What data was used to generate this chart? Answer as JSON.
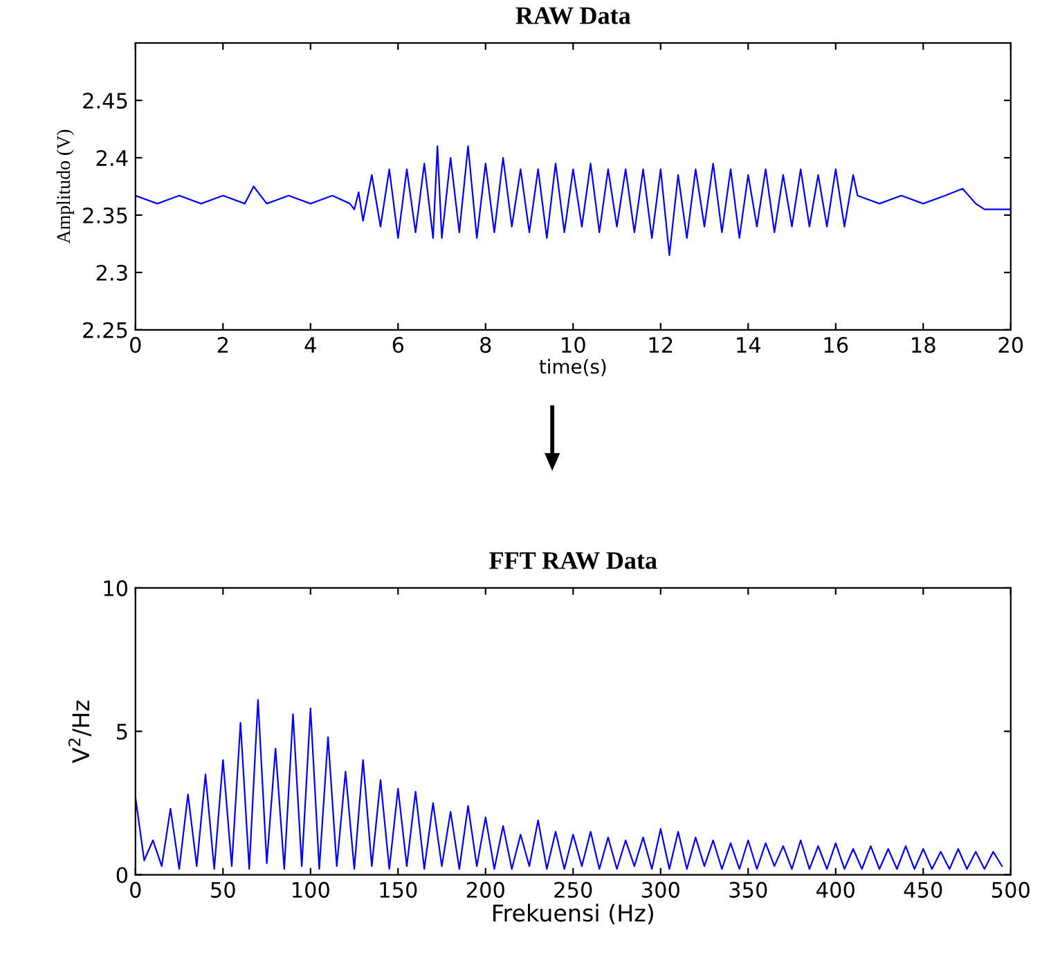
{
  "chart_data": [
    {
      "type": "line",
      "title": "RAW Data",
      "xlabel": "time(s)",
      "ylabel": "Amplitudo (V)",
      "xlim": [
        0,
        20
      ],
      "xticks": [
        0,
        2,
        4,
        6,
        8,
        10,
        12,
        14,
        16,
        18,
        20
      ],
      "ylim": [
        2.25,
        2.5
      ],
      "yticks": [
        2.25,
        2.3,
        2.35,
        2.4,
        2.45
      ],
      "grid": false,
      "legend": false,
      "marker": "none",
      "line_style": "solid",
      "series": [
        {
          "color": "#0000ff",
          "x": [
            0,
            0.5,
            1.0,
            1.5,
            2.0,
            2.5,
            2.7,
            3.0,
            3.5,
            4.0,
            4.5,
            4.9,
            5.0,
            5.1,
            5.2,
            5.4,
            5.6,
            5.8,
            6.0,
            6.2,
            6.4,
            6.6,
            6.8,
            6.9,
            7.0,
            7.2,
            7.4,
            7.6,
            7.8,
            8.0,
            8.2,
            8.4,
            8.6,
            8.8,
            9.0,
            9.2,
            9.4,
            9.6,
            9.8,
            10.0,
            10.2,
            10.4,
            10.6,
            10.8,
            11.0,
            11.2,
            11.4,
            11.6,
            11.8,
            12.0,
            12.2,
            12.4,
            12.6,
            12.8,
            13.0,
            13.2,
            13.4,
            13.6,
            13.8,
            14.0,
            14.2,
            14.4,
            14.6,
            14.8,
            15.0,
            15.2,
            15.4,
            15.6,
            15.8,
            16.0,
            16.2,
            16.4,
            16.5,
            17.0,
            17.5,
            18.0,
            18.5,
            18.9,
            19.2,
            19.4,
            20
          ],
          "values": [
            2.367,
            2.36,
            2.367,
            2.36,
            2.367,
            2.36,
            2.375,
            2.36,
            2.367,
            2.36,
            2.367,
            2.36,
            2.355,
            2.37,
            2.345,
            2.385,
            2.34,
            2.39,
            2.33,
            2.39,
            2.335,
            2.395,
            2.33,
            2.41,
            2.33,
            2.4,
            2.335,
            2.41,
            2.33,
            2.395,
            2.335,
            2.4,
            2.34,
            2.39,
            2.335,
            2.39,
            2.33,
            2.395,
            2.335,
            2.39,
            2.34,
            2.395,
            2.335,
            2.39,
            2.34,
            2.39,
            2.335,
            2.39,
            2.33,
            2.39,
            2.315,
            2.385,
            2.33,
            2.39,
            2.34,
            2.395,
            2.335,
            2.39,
            2.33,
            2.385,
            2.34,
            2.39,
            2.335,
            2.385,
            2.34,
            2.39,
            2.34,
            2.385,
            2.34,
            2.39,
            2.34,
            2.385,
            2.367,
            2.36,
            2.367,
            2.36,
            2.367,
            2.373,
            2.36,
            2.355,
            2.355
          ]
        }
      ]
    },
    {
      "type": "line",
      "title": "FFT RAW Data",
      "xlabel": "Frekuensi (Hz)",
      "ylabel": "V$^{2}$/Hz",
      "xlim": [
        0,
        500
      ],
      "xticks": [
        0,
        50,
        100,
        150,
        200,
        250,
        300,
        350,
        400,
        450,
        500
      ],
      "ylim": [
        0,
        10
      ],
      "yticks": [
        0,
        5,
        10
      ],
      "grid": false,
      "legend": false,
      "marker": "none",
      "line_style": "solid",
      "series": [
        {
          "color": "#0000ff",
          "x": [
            0,
            5,
            10,
            15,
            20,
            25,
            30,
            35,
            40,
            45,
            50,
            55,
            60,
            65,
            70,
            75,
            80,
            85,
            90,
            95,
            100,
            105,
            110,
            115,
            120,
            125,
            130,
            135,
            140,
            145,
            150,
            155,
            160,
            165,
            170,
            175,
            180,
            185,
            190,
            195,
            200,
            205,
            210,
            215,
            220,
            225,
            230,
            235,
            240,
            245,
            250,
            255,
            260,
            265,
            270,
            275,
            280,
            285,
            290,
            295,
            300,
            305,
            310,
            315,
            320,
            325,
            330,
            335,
            340,
            345,
            350,
            355,
            360,
            365,
            370,
            375,
            380,
            385,
            390,
            395,
            400,
            405,
            410,
            415,
            420,
            425,
            430,
            435,
            440,
            445,
            450,
            455,
            460,
            465,
            470,
            475,
            480,
            485,
            490,
            495
          ],
          "values": [
            2.7,
            0.5,
            1.2,
            0.3,
            2.3,
            0.2,
            2.8,
            0.3,
            3.5,
            0.2,
            4.0,
            0.3,
            5.3,
            0.2,
            6.1,
            0.4,
            4.4,
            0.2,
            5.6,
            0.3,
            5.8,
            0.2,
            4.8,
            0.3,
            3.6,
            0.2,
            4.0,
            0.3,
            3.3,
            0.2,
            3.0,
            0.3,
            2.9,
            0.2,
            2.5,
            0.3,
            2.2,
            0.2,
            2.4,
            0.3,
            2.0,
            0.2,
            1.7,
            0.2,
            1.4,
            0.3,
            1.9,
            0.2,
            1.5,
            0.2,
            1.4,
            0.3,
            1.5,
            0.2,
            1.3,
            0.2,
            1.2,
            0.3,
            1.3,
            0.2,
            1.6,
            0.2,
            1.5,
            0.2,
            1.3,
            0.3,
            1.2,
            0.2,
            1.1,
            0.2,
            1.2,
            0.2,
            1.1,
            0.3,
            1.0,
            0.2,
            1.2,
            0.2,
            1.0,
            0.2,
            1.1,
            0.2,
            0.9,
            0.2,
            1.0,
            0.2,
            0.9,
            0.2,
            1.0,
            0.2,
            0.9,
            0.2,
            0.8,
            0.2,
            0.9,
            0.2,
            0.8,
            0.2,
            0.8,
            0.3
          ]
        }
      ]
    }
  ]
}
